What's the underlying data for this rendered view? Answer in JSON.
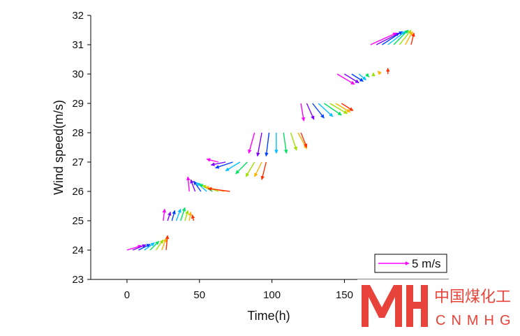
{
  "chart_data": {
    "type": "quiver",
    "x_label": "Time(h)",
    "y_label": "Wind speed(m/s)",
    "xlim": [
      -25,
      222
    ],
    "ylim": [
      23,
      32
    ],
    "xticks": [
      0,
      50,
      100,
      150
    ],
    "yticks": [
      23,
      24,
      25,
      26,
      27,
      28,
      29,
      30,
      31,
      32
    ],
    "colors": [
      "#ff00ff",
      "#8000ff",
      "#0040ff",
      "#00c0ff",
      "#00e060",
      "#a0e000",
      "#ffb000",
      "#ff3000"
    ],
    "legend_label": "5 m/s",
    "legend_color": "#ff00ff",
    "series": [
      {
        "y": 24,
        "x": [
          0,
          4,
          8,
          12,
          16,
          20,
          24,
          27
        ],
        "dx": [
          10,
          9,
          8,
          7,
          6,
          5,
          3,
          1
        ],
        "dy": [
          0.15,
          0.18,
          0.2,
          0.25,
          0.3,
          0.35,
          0.4,
          0.5
        ]
      },
      {
        "y": 25,
        "x": [
          25,
          28,
          31,
          34,
          37,
          40,
          43,
          46
        ],
        "dx": [
          1,
          2,
          2,
          3,
          3,
          2,
          1,
          -1
        ],
        "dy": [
          0.4,
          0.3,
          0.35,
          0.4,
          0.45,
          0.35,
          0.3,
          0.2
        ]
      },
      {
        "y": 26,
        "x": [
          43,
          47,
          51,
          55,
          59,
          63,
          67,
          71
        ],
        "dx": [
          -1,
          -3,
          -5,
          -7,
          -9,
          -11,
          -13,
          -15
        ],
        "dy": [
          0.5,
          0.4,
          0.35,
          0.3,
          0.25,
          0.2,
          0.15,
          0.1
        ]
      },
      {
        "y": 27,
        "x": [
          63,
          68,
          73,
          78,
          83,
          88,
          93,
          96
        ],
        "dx": [
          -8,
          -10,
          -12,
          -10,
          -8,
          -6,
          -5,
          -3
        ],
        "dy": [
          0.1,
          -0.1,
          -0.2,
          -0.3,
          -0.4,
          -0.5,
          -0.5,
          -0.6
        ]
      },
      {
        "y": 28,
        "x": [
          88,
          93,
          98,
          103,
          108,
          113,
          118,
          120
        ],
        "dx": [
          -4,
          -3,
          -2,
          0,
          2,
          4,
          6,
          4
        ],
        "dy": [
          -0.7,
          -0.8,
          -0.8,
          -0.7,
          -0.7,
          -0.6,
          -0.55,
          -0.5
        ]
      },
      {
        "y": 29,
        "x": [
          120,
          124,
          128,
          132,
          136,
          140,
          144,
          148
        ],
        "dx": [
          2,
          5,
          8,
          10,
          12,
          12,
          10,
          8
        ],
        "dy": [
          -0.6,
          -0.55,
          -0.5,
          -0.45,
          -0.4,
          -0.35,
          -0.3,
          -0.25
        ]
      },
      {
        "y": 30,
        "x": [
          145,
          150,
          155,
          160,
          165,
          170,
          175,
          180
        ],
        "dx": [
          12,
          10,
          8,
          5,
          2,
          0,
          -2,
          0
        ],
        "dy": [
          -0.35,
          -0.3,
          -0.25,
          -0.2,
          -0.1,
          0.05,
          0.1,
          0.2
        ]
      },
      {
        "y": 31,
        "x": [
          168,
          172,
          176,
          180,
          184,
          188,
          192,
          196
        ],
        "dx": [
          18,
          16,
          14,
          12,
          10,
          8,
          5,
          2
        ],
        "dy": [
          0.4,
          0.4,
          0.45,
          0.45,
          0.5,
          0.5,
          0.45,
          0.4
        ]
      }
    ]
  },
  "watermark": {
    "text": "中国煤化工",
    "sub": "CNMHG"
  }
}
